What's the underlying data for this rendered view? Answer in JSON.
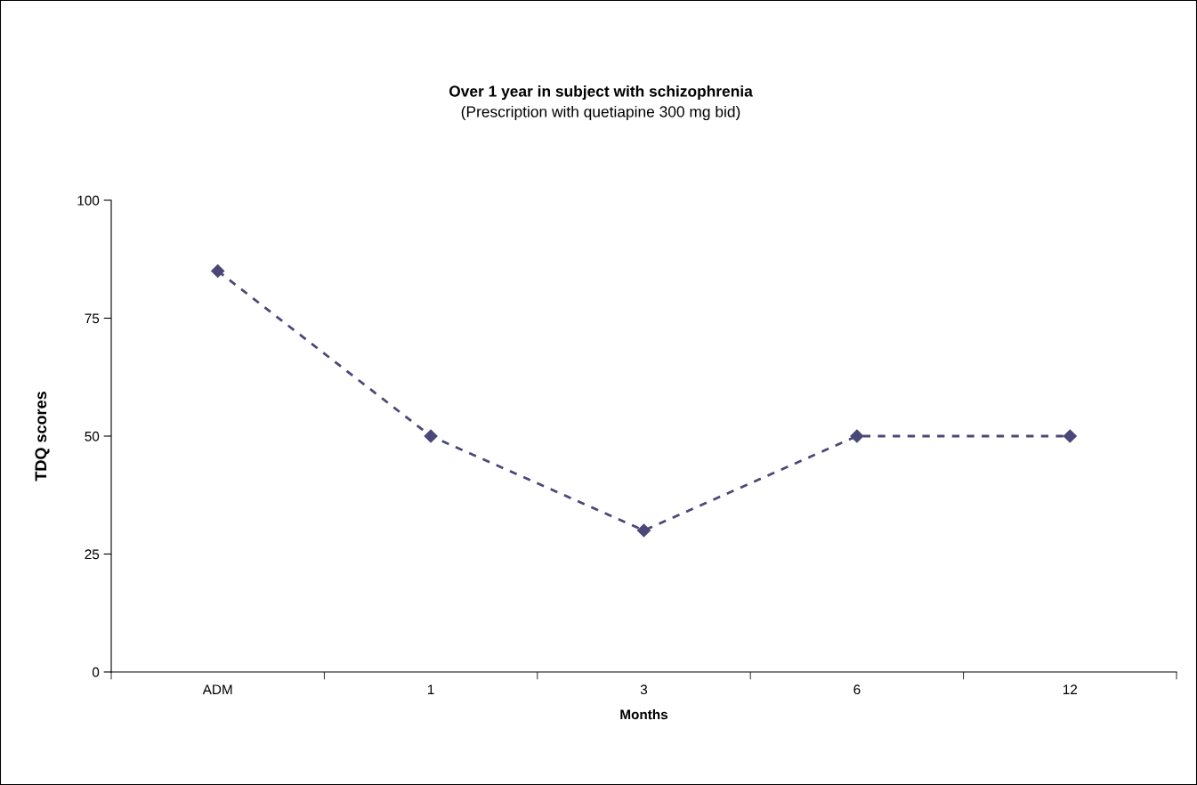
{
  "chart_data": {
    "type": "line",
    "title": "Over 1 year in subject with schizophrenia",
    "subtitle": "(Prescription with quetiapine 300 mg bid)",
    "xlabel": "Months",
    "ylabel": "TDQ scores",
    "categories": [
      "ADM",
      "1",
      "3",
      "6",
      "12"
    ],
    "series": [
      {
        "color": "#4a4878",
        "values": [
          85,
          50,
          30,
          50,
          50
        ]
      }
    ],
    "ylim": [
      0,
      100
    ],
    "yticks": [
      0,
      25,
      50,
      75,
      100
    ],
    "grid": false,
    "legend": false,
    "marker": "diamond",
    "line_style": "dashed"
  }
}
